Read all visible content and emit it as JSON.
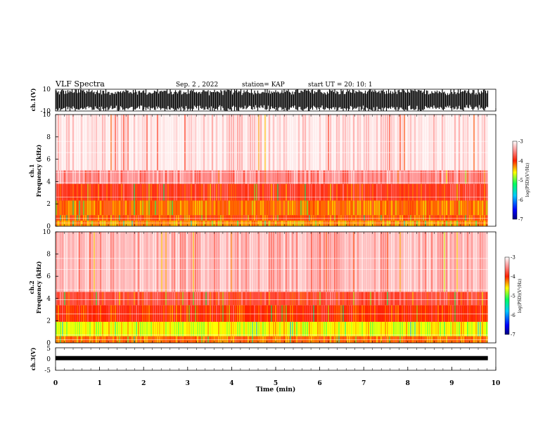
{
  "header": {
    "title": "VLF Spectra",
    "date": "Sep. 2  , 2022",
    "station": "station= KAP",
    "start_ut": "start  UT  =   20: 10: 1"
  },
  "chart_data": [
    {
      "type": "line",
      "panel": "ch1-waveform",
      "ylabel": "ch.1(V)",
      "yticklabels": [
        "10",
        "-10"
      ],
      "ylim": [
        -10,
        10
      ],
      "xlim": [
        0,
        10
      ],
      "x_end_data": 9.82,
      "color": "#000000"
    },
    {
      "type": "heatmap",
      "panel": "ch1-spectrogram",
      "ylabel_line1": "ch.1",
      "ylabel_line2": "Frequency  (kHz)",
      "ylim": [
        0,
        10
      ],
      "yticklabels": [
        "0",
        "2",
        "4",
        "6",
        "8",
        "10"
      ],
      "xlim": [
        0,
        10
      ],
      "x_end_data": 9.82,
      "bands_khz": [
        {
          "from": 0.0,
          "to": 0.5,
          "level": -4.3
        },
        {
          "from": 0.5,
          "to": 1.0,
          "level": -4.1
        },
        {
          "from": 1.0,
          "to": 2.3,
          "level": -4.2
        },
        {
          "from": 2.3,
          "to": 3.8,
          "level": -3.9
        },
        {
          "from": 3.8,
          "to": 5.0,
          "level": -3.5
        },
        {
          "from": 5.0,
          "to": 10.0,
          "level": -3.1
        }
      ],
      "colorbar": {
        "ticks": [
          "-3",
          "-4",
          "-5",
          "-6",
          "-7"
        ],
        "range": [
          -7,
          -3
        ],
        "label": "log(PSD)(V²/Hz)"
      }
    },
    {
      "type": "heatmap",
      "panel": "ch2-spectrogram",
      "ylabel_line1": "ch.2",
      "ylabel_line2": "Frequency  (kHz)",
      "ylim": [
        0,
        10
      ],
      "yticklabels": [
        "0",
        "2",
        "4",
        "6",
        "8",
        "10"
      ],
      "xlim": [
        0,
        10
      ],
      "x_end_data": 9.82,
      "bands_khz": [
        {
          "from": 0.0,
          "to": 0.6,
          "level": -4.2
        },
        {
          "from": 0.6,
          "to": 1.9,
          "level": -4.6
        },
        {
          "from": 1.9,
          "to": 3.4,
          "level": -4.0
        },
        {
          "from": 3.4,
          "to": 4.6,
          "level": -3.8
        },
        {
          "from": 4.6,
          "to": 10.0,
          "level": -3.3
        }
      ],
      "colorbar": {
        "ticks": [
          "-3",
          "-4",
          "-5",
          "-6",
          "-7"
        ],
        "range": [
          -7,
          -3
        ],
        "label": "log(PSD)(V²/Hz)"
      }
    },
    {
      "type": "line",
      "panel": "ch3-waveform",
      "ylabel": "ch.3(V)",
      "yticklabels": [
        "5",
        "0",
        "-5"
      ],
      "ylim": [
        -5,
        5
      ],
      "xlim": [
        0,
        10
      ],
      "x_end_data": 9.82,
      "level_v": 0.4,
      "color": "#000000"
    }
  ],
  "xaxis": {
    "label": "Time  (min)",
    "ticks": [
      "0",
      "1",
      "2",
      "3",
      "4",
      "5",
      "6",
      "7",
      "8",
      "9",
      "10"
    ]
  }
}
